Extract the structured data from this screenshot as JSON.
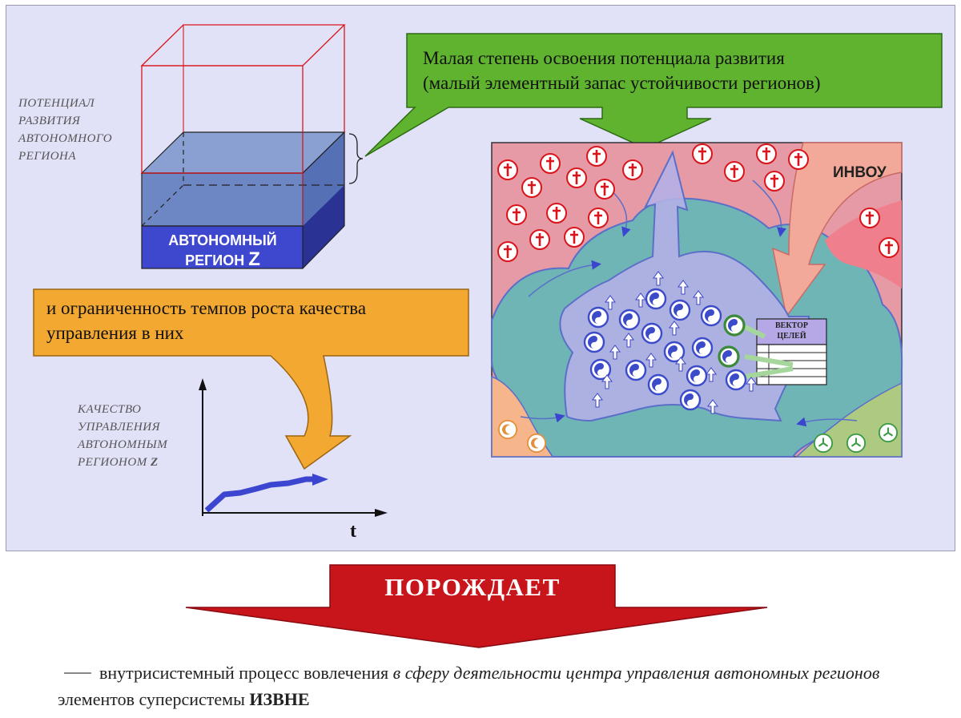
{
  "potential_label": [
    "ПОТЕНЦИАЛ",
    "РАЗВИТИЯ",
    "АВТОНОМНОГО",
    "РЕГИОНА"
  ],
  "region_box": {
    "line1": "АВТОНОМНЫЙ",
    "line2": "РЕГИОН",
    "letter": "Z"
  },
  "green_callout": [
    "Малая степень освоения потенциала развития",
    "(малый элементный запас устойчивости регионов)"
  ],
  "orange_callout": [
    "и ограниченность темпов роста качества",
    "управления в них"
  ],
  "quality_label": [
    "КАЧЕСТВО",
    "УПРАВЛЕНИЯ",
    "АВТОНОМНЫМ",
    "РЕГИОНОМ",
    "Z"
  ],
  "axis_t": "t",
  "invou_label": "ИНВОУ",
  "vector_table_title": [
    "ВЕКТОР",
    "ЦЕЛЕЙ"
  ],
  "banner_label": "ПОРОЖДАЕТ",
  "bottom": {
    "dash": "—",
    "part1": "внутрисистемный процесс вовлечения",
    "part2_italic": "в сферу деятельности центра управления автономных регионов",
    "part3": "элементов суперсистемы",
    "part4_bold": "ИЗВНЕ"
  },
  "colors": {
    "background_panel": "#e1e2f8",
    "green_callout": "#5fb32e",
    "orange_callout": "#f2a831",
    "banner_red": "#c8141b",
    "region_blue": "#3e48cf",
    "teal": "#6fb5b6",
    "pink": "#e59aa6"
  },
  "icons": [
    "cross-icon",
    "yin-yang-icon",
    "crescent-icon",
    "trefoil-icon"
  ]
}
